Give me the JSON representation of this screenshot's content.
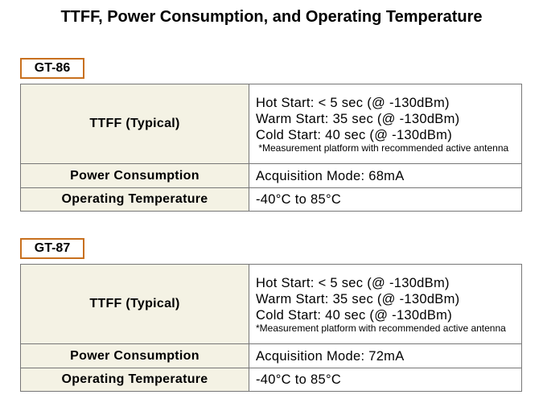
{
  "title": "TTFF, Power Consumption, and Operating Temperature",
  "sections": [
    {
      "label": "GT-86",
      "rows": [
        {
          "header": "TTFF (Typical)",
          "lines": [
            "Hot Start: < 5 sec (@ -130dBm)",
            "Warm Start: 35 sec (@ -130dBm)",
            "Cold Start: 40 sec (@ -130dBm)"
          ],
          "note": " *Measurement platform with recommended active antenna"
        },
        {
          "header": "Power Consumption",
          "lines": [
            "Acquisition Mode: 68mA"
          ]
        },
        {
          "header": "Operating Temperature",
          "lines": [
            "-40°C to 85°C"
          ]
        }
      ]
    },
    {
      "label": "GT-87",
      "rows": [
        {
          "header": "TTFF (Typical)",
          "lines": [
            "Hot Start: < 5 sec (@ -130dBm)",
            "Warm Start: 35 sec (@ -130dBm)",
            "Cold Start: 40 sec (@ -130dBm)"
          ],
          "note": "*Measurement platform with recommended active antenna"
        },
        {
          "header": "Power Consumption",
          "lines": [
            "Acquisition Mode: 72mA"
          ]
        },
        {
          "header": "Operating Temperature",
          "lines": [
            "-40°C to 85°C"
          ]
        }
      ]
    }
  ]
}
